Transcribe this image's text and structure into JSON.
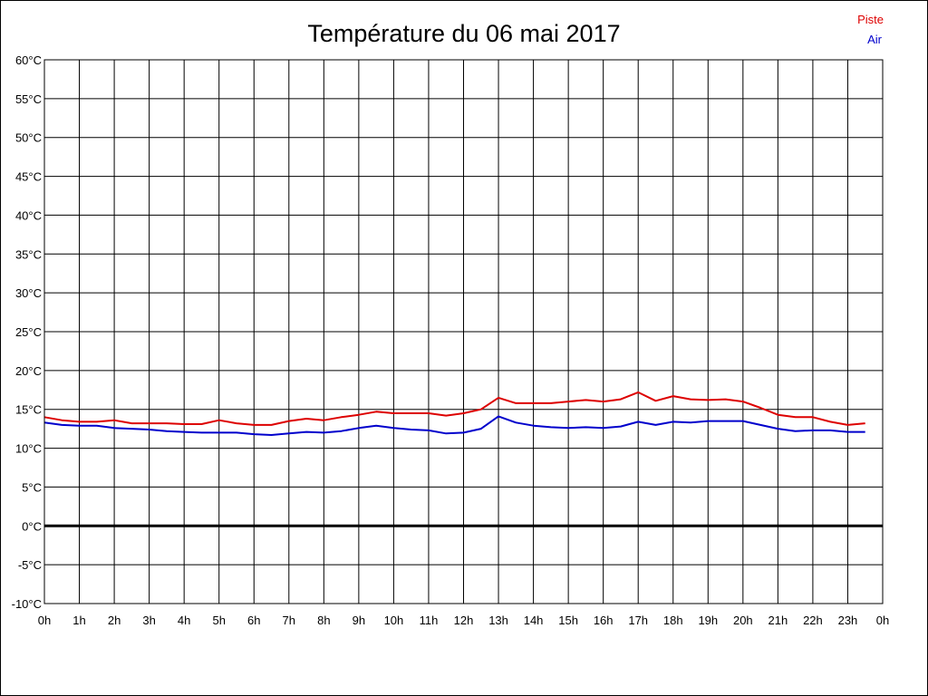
{
  "chart_data": {
    "type": "line",
    "title": "Température du 06 mai 2017",
    "x_ticks": [
      "0h",
      "1h",
      "2h",
      "3h",
      "4h",
      "5h",
      "6h",
      "7h",
      "8h",
      "9h",
      "10h",
      "11h",
      "12h",
      "13h",
      "14h",
      "15h",
      "16h",
      "17h",
      "18h",
      "19h",
      "20h",
      "21h",
      "22h",
      "23h",
      "0h"
    ],
    "y_ticks": [
      "60°C",
      "55°C",
      "50°C",
      "45°C",
      "40°C",
      "35°C",
      "30°C",
      "25°C",
      "20°C",
      "15°C",
      "10°C",
      "5°C",
      "0°C",
      "-5°C",
      "-10°C"
    ],
    "xlim": [
      0,
      24
    ],
    "ylim": [
      -10,
      60
    ],
    "grid": true,
    "zero_line": true,
    "legend": "top-right",
    "series": [
      {
        "name": "Piste",
        "color": "#dd0000",
        "x": [
          0,
          0.5,
          1,
          1.5,
          2,
          2.5,
          3,
          3.5,
          4,
          4.5,
          5,
          5.5,
          6,
          6.5,
          7,
          7.5,
          8,
          8.5,
          9,
          9.5,
          10,
          10.5,
          11,
          11.5,
          12,
          12.5,
          13,
          13.5,
          14,
          14.5,
          15,
          15.5,
          16,
          16.5,
          17,
          17.5,
          18,
          18.5,
          19,
          19.5,
          20,
          20.5,
          21,
          21.5,
          22,
          22.5,
          23,
          23.5
        ],
        "y": [
          14,
          13.6,
          13.4,
          13.4,
          13.6,
          13.2,
          13.2,
          13.2,
          13.1,
          13.1,
          13.6,
          13.2,
          13,
          13,
          13.5,
          13.8,
          13.6,
          14,
          14.3,
          14.7,
          14.5,
          14.5,
          14.5,
          14.2,
          14.5,
          15,
          16.5,
          15.8,
          15.8,
          15.8,
          16,
          16.2,
          16,
          16.3,
          17.2,
          16.1,
          16.7,
          16.3,
          16.2,
          16.3,
          16,
          15.2,
          14.3,
          14,
          14,
          13.4,
          13,
          13.2
        ]
      },
      {
        "name": "Air",
        "color": "#0000cc",
        "x": [
          0,
          0.5,
          1,
          1.5,
          2,
          2.5,
          3,
          3.5,
          4,
          4.5,
          5,
          5.5,
          6,
          6.5,
          7,
          7.5,
          8,
          8.5,
          9,
          9.5,
          10,
          10.5,
          11,
          11.5,
          12,
          12.5,
          13,
          13.5,
          14,
          14.5,
          15,
          15.5,
          16,
          16.5,
          17,
          17.5,
          18,
          18.5,
          19,
          19.5,
          20,
          20.5,
          21,
          21.5,
          22,
          22.5,
          23,
          23.5
        ],
        "y": [
          13.3,
          13,
          12.9,
          12.9,
          12.6,
          12.5,
          12.4,
          12.2,
          12.1,
          12,
          12,
          12,
          11.8,
          11.7,
          11.9,
          12.1,
          12,
          12.2,
          12.6,
          12.9,
          12.6,
          12.4,
          12.3,
          11.9,
          12,
          12.5,
          14.1,
          13.3,
          12.9,
          12.7,
          12.6,
          12.7,
          12.6,
          12.8,
          13.4,
          13,
          13.4,
          13.3,
          13.5,
          13.5,
          13.5,
          13,
          12.5,
          12.2,
          12.3,
          12.3,
          12.1,
          12.1
        ]
      }
    ]
  }
}
